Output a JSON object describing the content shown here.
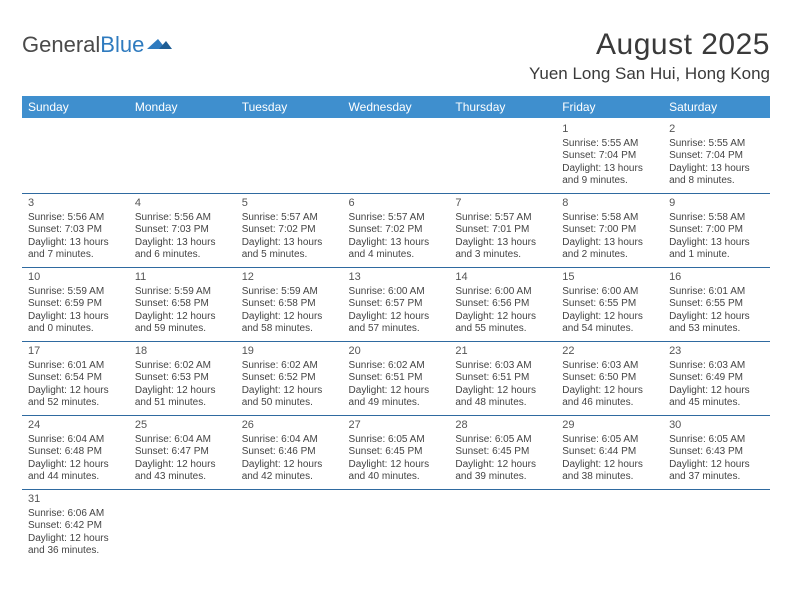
{
  "brand": {
    "part1": "General",
    "part2": "Blue"
  },
  "title": "August 2025",
  "location": "Yuen Long San Hui, Hong Kong",
  "colors": {
    "header_bg": "#3f8fce",
    "header_text": "#ffffff",
    "row_border": "#2f6aa0",
    "body_text": "#444444",
    "page_bg": "#ffffff",
    "logo_blue": "#2f7bbf"
  },
  "weekdays": [
    "Sunday",
    "Monday",
    "Tuesday",
    "Wednesday",
    "Thursday",
    "Friday",
    "Saturday"
  ],
  "first_weekday_index": 5,
  "days": [
    {
      "n": 1,
      "sunrise": "5:55 AM",
      "sunset": "7:04 PM",
      "dl1": "13 hours",
      "dl2": "and 9 minutes."
    },
    {
      "n": 2,
      "sunrise": "5:55 AM",
      "sunset": "7:04 PM",
      "dl1": "13 hours",
      "dl2": "and 8 minutes."
    },
    {
      "n": 3,
      "sunrise": "5:56 AM",
      "sunset": "7:03 PM",
      "dl1": "13 hours",
      "dl2": "and 7 minutes."
    },
    {
      "n": 4,
      "sunrise": "5:56 AM",
      "sunset": "7:03 PM",
      "dl1": "13 hours",
      "dl2": "and 6 minutes."
    },
    {
      "n": 5,
      "sunrise": "5:57 AM",
      "sunset": "7:02 PM",
      "dl1": "13 hours",
      "dl2": "and 5 minutes."
    },
    {
      "n": 6,
      "sunrise": "5:57 AM",
      "sunset": "7:02 PM",
      "dl1": "13 hours",
      "dl2": "and 4 minutes."
    },
    {
      "n": 7,
      "sunrise": "5:57 AM",
      "sunset": "7:01 PM",
      "dl1": "13 hours",
      "dl2": "and 3 minutes."
    },
    {
      "n": 8,
      "sunrise": "5:58 AM",
      "sunset": "7:00 PM",
      "dl1": "13 hours",
      "dl2": "and 2 minutes."
    },
    {
      "n": 9,
      "sunrise": "5:58 AM",
      "sunset": "7:00 PM",
      "dl1": "13 hours",
      "dl2": "and 1 minute."
    },
    {
      "n": 10,
      "sunrise": "5:59 AM",
      "sunset": "6:59 PM",
      "dl1": "13 hours",
      "dl2": "and 0 minutes."
    },
    {
      "n": 11,
      "sunrise": "5:59 AM",
      "sunset": "6:58 PM",
      "dl1": "12 hours",
      "dl2": "and 59 minutes."
    },
    {
      "n": 12,
      "sunrise": "5:59 AM",
      "sunset": "6:58 PM",
      "dl1": "12 hours",
      "dl2": "and 58 minutes."
    },
    {
      "n": 13,
      "sunrise": "6:00 AM",
      "sunset": "6:57 PM",
      "dl1": "12 hours",
      "dl2": "and 57 minutes."
    },
    {
      "n": 14,
      "sunrise": "6:00 AM",
      "sunset": "6:56 PM",
      "dl1": "12 hours",
      "dl2": "and 55 minutes."
    },
    {
      "n": 15,
      "sunrise": "6:00 AM",
      "sunset": "6:55 PM",
      "dl1": "12 hours",
      "dl2": "and 54 minutes."
    },
    {
      "n": 16,
      "sunrise": "6:01 AM",
      "sunset": "6:55 PM",
      "dl1": "12 hours",
      "dl2": "and 53 minutes."
    },
    {
      "n": 17,
      "sunrise": "6:01 AM",
      "sunset": "6:54 PM",
      "dl1": "12 hours",
      "dl2": "and 52 minutes."
    },
    {
      "n": 18,
      "sunrise": "6:02 AM",
      "sunset": "6:53 PM",
      "dl1": "12 hours",
      "dl2": "and 51 minutes."
    },
    {
      "n": 19,
      "sunrise": "6:02 AM",
      "sunset": "6:52 PM",
      "dl1": "12 hours",
      "dl2": "and 50 minutes."
    },
    {
      "n": 20,
      "sunrise": "6:02 AM",
      "sunset": "6:51 PM",
      "dl1": "12 hours",
      "dl2": "and 49 minutes."
    },
    {
      "n": 21,
      "sunrise": "6:03 AM",
      "sunset": "6:51 PM",
      "dl1": "12 hours",
      "dl2": "and 48 minutes."
    },
    {
      "n": 22,
      "sunrise": "6:03 AM",
      "sunset": "6:50 PM",
      "dl1": "12 hours",
      "dl2": "and 46 minutes."
    },
    {
      "n": 23,
      "sunrise": "6:03 AM",
      "sunset": "6:49 PM",
      "dl1": "12 hours",
      "dl2": "and 45 minutes."
    },
    {
      "n": 24,
      "sunrise": "6:04 AM",
      "sunset": "6:48 PM",
      "dl1": "12 hours",
      "dl2": "and 44 minutes."
    },
    {
      "n": 25,
      "sunrise": "6:04 AM",
      "sunset": "6:47 PM",
      "dl1": "12 hours",
      "dl2": "and 43 minutes."
    },
    {
      "n": 26,
      "sunrise": "6:04 AM",
      "sunset": "6:46 PM",
      "dl1": "12 hours",
      "dl2": "and 42 minutes."
    },
    {
      "n": 27,
      "sunrise": "6:05 AM",
      "sunset": "6:45 PM",
      "dl1": "12 hours",
      "dl2": "and 40 minutes."
    },
    {
      "n": 28,
      "sunrise": "6:05 AM",
      "sunset": "6:45 PM",
      "dl1": "12 hours",
      "dl2": "and 39 minutes."
    },
    {
      "n": 29,
      "sunrise": "6:05 AM",
      "sunset": "6:44 PM",
      "dl1": "12 hours",
      "dl2": "and 38 minutes."
    },
    {
      "n": 30,
      "sunrise": "6:05 AM",
      "sunset": "6:43 PM",
      "dl1": "12 hours",
      "dl2": "and 37 minutes."
    },
    {
      "n": 31,
      "sunrise": "6:06 AM",
      "sunset": "6:42 PM",
      "dl1": "12 hours",
      "dl2": "and 36 minutes."
    }
  ],
  "labels": {
    "sunrise": "Sunrise:",
    "sunset": "Sunset:",
    "daylight": "Daylight:"
  }
}
